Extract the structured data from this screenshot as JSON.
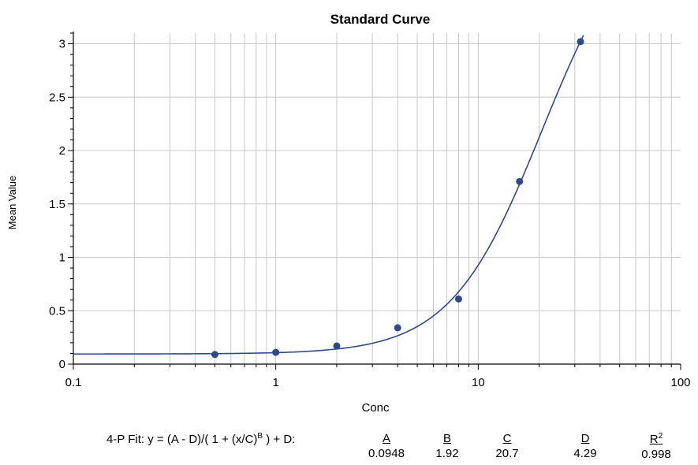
{
  "chart_data": {
    "type": "scatter",
    "title": "Standard Curve",
    "xlabel": "Conc",
    "ylabel": "Mean Value",
    "xscale": "log",
    "xlim": [
      0.1,
      100
    ],
    "ylim": [
      0,
      3.1
    ],
    "grid": true,
    "xticks": [
      "0.1",
      "1",
      "10",
      "100"
    ],
    "yticks": [
      "0",
      "0.5",
      "1",
      "1.5",
      "2",
      "2.5",
      "3"
    ],
    "points": [
      {
        "x": 0.5,
        "y": 0.09
      },
      {
        "x": 1,
        "y": 0.11
      },
      {
        "x": 2,
        "y": 0.17
      },
      {
        "x": 4,
        "y": 0.34
      },
      {
        "x": 8,
        "y": 0.61
      },
      {
        "x": 16,
        "y": 1.71
      },
      {
        "x": 32,
        "y": 3.02
      }
    ],
    "fit": {
      "model": "4-P",
      "A": 0.0948,
      "B": 1.92,
      "C": 20.7,
      "D": 4.29
    },
    "colors": {
      "series": "#2e4a8f",
      "grid": "#c8c8c8"
    }
  },
  "fit_panel": {
    "equation_prefix": "4-P Fit: y = (A - D)/( 1 + (x/C)",
    "equation_sup": "B",
    "equation_suffix": " ) + D:",
    "params": [
      {
        "name": "A",
        "value": "0.0948"
      },
      {
        "name": "B",
        "value": "1.92"
      },
      {
        "name": "C",
        "value": "20.7"
      },
      {
        "name": "D",
        "value": "4.29"
      },
      {
        "name": "R",
        "sup": "2",
        "value": "0.998"
      }
    ]
  }
}
